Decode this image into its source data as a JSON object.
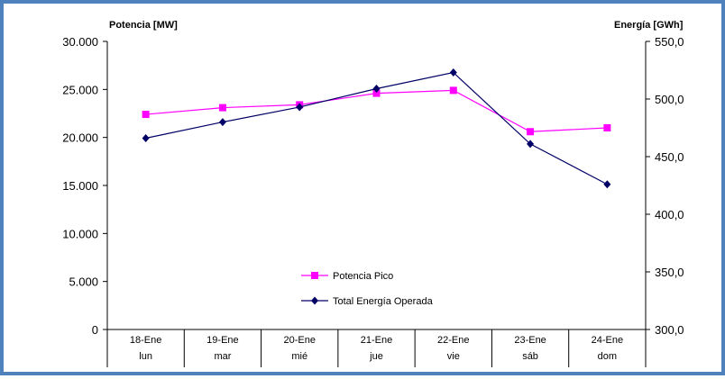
{
  "chart_data": {
    "type": "line",
    "y_left_label": "Potencia [MW]",
    "y_right_label": "Energía [GWh]",
    "y_left_ticks": [
      "30.000",
      "25.000",
      "20.000",
      "15.000",
      "10.000",
      "5.000",
      "0"
    ],
    "y_right_ticks": [
      "550,0",
      "500,0",
      "450,0",
      "400,0",
      "350,0",
      "300,0"
    ],
    "y_left_range": [
      0,
      30000
    ],
    "y_right_range": [
      300,
      550
    ],
    "categories": [
      {
        "date": "18-Ene",
        "day": "lun"
      },
      {
        "date": "19-Ene",
        "day": "mar"
      },
      {
        "date": "20-Ene",
        "day": "mié"
      },
      {
        "date": "21-Ene",
        "day": "jue"
      },
      {
        "date": "22-Ene",
        "day": "vie"
      },
      {
        "date": "23-Ene",
        "day": "sáb"
      },
      {
        "date": "24-Ene",
        "day": "dom"
      }
    ],
    "series": [
      {
        "name": "Potencia Pico",
        "axis": "left",
        "color": "#ff00ff",
        "marker": "square",
        "values": [
          22400,
          23100,
          23400,
          24600,
          24900,
          20600,
          21000
        ]
      },
      {
        "name": "Total Energía Operada",
        "axis": "right",
        "color": "#000066",
        "marker": "diamond",
        "values": [
          466,
          480,
          493,
          509,
          523,
          461,
          426
        ]
      }
    ],
    "legend_position": "bottom-center",
    "grid": false
  }
}
